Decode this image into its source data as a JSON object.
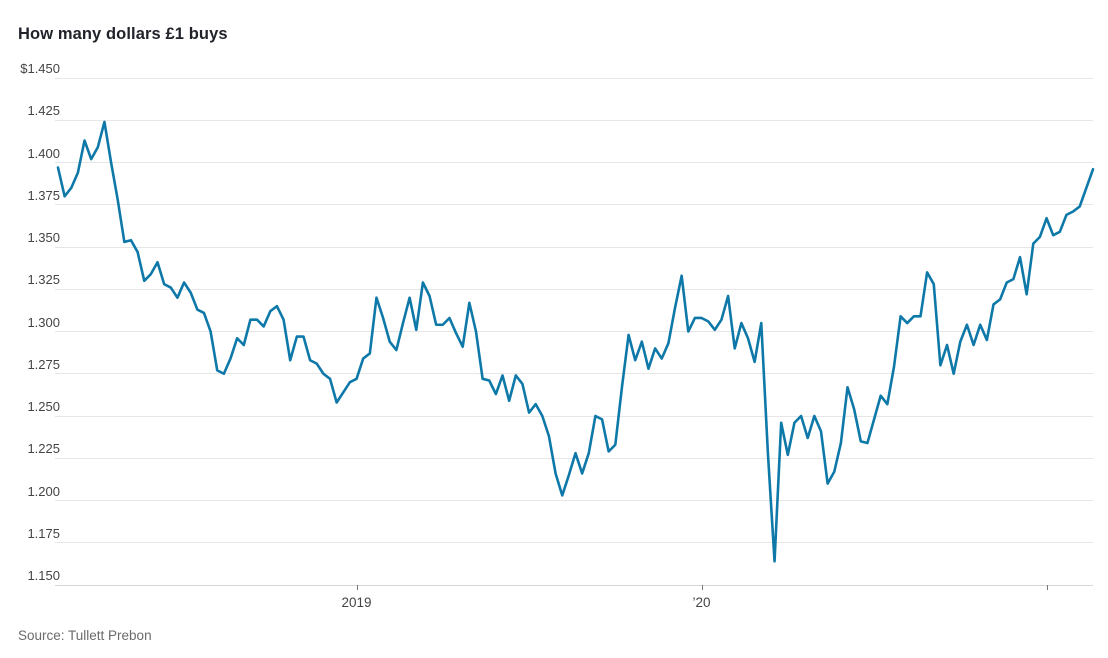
{
  "source": "Source: Tullett Prebon",
  "colors": {
    "line": "#0e79a8",
    "grid": "#e6e6e6",
    "axis": "#d6d6d6",
    "tick": "#777777",
    "title_text": "#20232a",
    "axis_label_text": "#444444",
    "source_text": "#6b6b6b",
    "background": "#ffffff"
  },
  "chart_data": {
    "type": "line",
    "title": "How many dollars £1 buys",
    "xlabel": "",
    "ylabel": "",
    "ylim": [
      1.15,
      1.45
    ],
    "y_tick_step": 0.025,
    "grid": "horizontal-only",
    "legend": "none",
    "y_ticks": [
      "$1.450",
      "1.425",
      "1.400",
      "1.375",
      "1.350",
      "1.325",
      "1.300",
      "1.275",
      "1.250",
      "1.225",
      "1.200",
      "1.175",
      "1.150"
    ],
    "x_axis": {
      "description": "weekly series, early 2018 through early 2021; ticks mark year starts",
      "ticks": [
        {
          "label": "2019",
          "index": 45
        },
        {
          "label": "’20",
          "index": 97
        },
        {
          "label": "",
          "index": 149
        }
      ]
    },
    "values": [
      1.397,
      1.38,
      1.385,
      1.394,
      1.413,
      1.402,
      1.409,
      1.424,
      1.4,
      1.378,
      1.353,
      1.354,
      1.347,
      1.33,
      1.334,
      1.341,
      1.328,
      1.326,
      1.32,
      1.329,
      1.323,
      1.313,
      1.311,
      1.3,
      1.277,
      1.275,
      1.284,
      1.296,
      1.292,
      1.307,
      1.307,
      1.303,
      1.312,
      1.315,
      1.307,
      1.283,
      1.297,
      1.297,
      1.283,
      1.281,
      1.275,
      1.272,
      1.258,
      1.264,
      1.27,
      1.272,
      1.284,
      1.287,
      1.32,
      1.308,
      1.294,
      1.289,
      1.305,
      1.32,
      1.301,
      1.329,
      1.321,
      1.304,
      1.304,
      1.308,
      1.299,
      1.291,
      1.317,
      1.3,
      1.272,
      1.271,
      1.263,
      1.274,
      1.259,
      1.274,
      1.269,
      1.252,
      1.257,
      1.25,
      1.238,
      1.216,
      1.203,
      1.215,
      1.228,
      1.216,
      1.228,
      1.25,
      1.248,
      1.229,
      1.233,
      1.267,
      1.298,
      1.283,
      1.294,
      1.278,
      1.29,
      1.284,
      1.293,
      1.314,
      1.333,
      1.3,
      1.308,
      1.308,
      1.306,
      1.301,
      1.307,
      1.321,
      1.29,
      1.305,
      1.296,
      1.282,
      1.305,
      1.228,
      1.164,
      1.246,
      1.227,
      1.246,
      1.25,
      1.237,
      1.25,
      1.241,
      1.21,
      1.217,
      1.234,
      1.267,
      1.254,
      1.235,
      1.234,
      1.248,
      1.262,
      1.257,
      1.279,
      1.309,
      1.305,
      1.309,
      1.309,
      1.335,
      1.328,
      1.28,
      1.292,
      1.275,
      1.294,
      1.304,
      1.292,
      1.304,
      1.295,
      1.316,
      1.319,
      1.329,
      1.331,
      1.344,
      1.322,
      1.352,
      1.356,
      1.367,
      1.357,
      1.359,
      1.369,
      1.371,
      1.374,
      1.385,
      1.396
    ]
  }
}
